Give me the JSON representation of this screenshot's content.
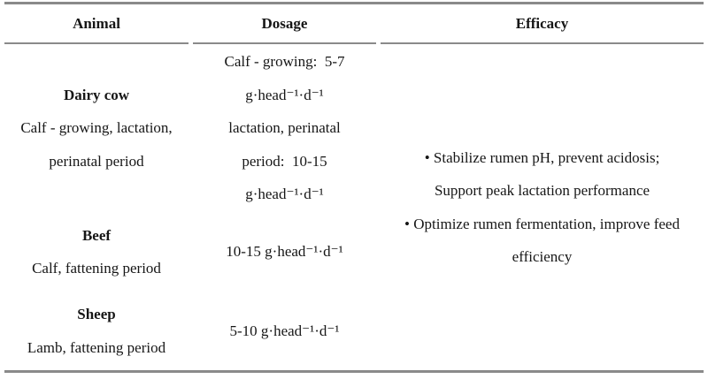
{
  "table": {
    "headers": {
      "animal": "Animal",
      "dosage": "Dosage",
      "efficacy": "Efficacy"
    },
    "rows": [
      {
        "animal_name": "Dairy cow",
        "animal_detail_lines": [
          "Calf - growing, lactation,",
          "perinatal period"
        ],
        "dosage_lines": [
          "Calf - growing:  5-7",
          "g·head⁻¹·d⁻¹",
          "lactation, perinatal",
          "period:  10-15",
          "g·head⁻¹·d⁻¹"
        ]
      },
      {
        "animal_name": "Beef",
        "animal_detail_lines": [
          "Calf, fattening period"
        ],
        "dosage_lines": [
          "10-15 g·head⁻¹·d⁻¹"
        ]
      },
      {
        "animal_name": "Sheep",
        "animal_detail_lines": [
          "Lamb, fattening period"
        ],
        "dosage_lines": [
          "5-10 g·head⁻¹·d⁻¹"
        ]
      }
    ],
    "efficacy_lines": [
      "• Stabilize rumen pH, prevent acidosis;",
      "Support peak lactation performance",
      "• Optimize rumen fermentation, improve feed",
      "efficiency"
    ]
  },
  "colors": {
    "rule": "#8a8a8a",
    "text": "#161616"
  }
}
